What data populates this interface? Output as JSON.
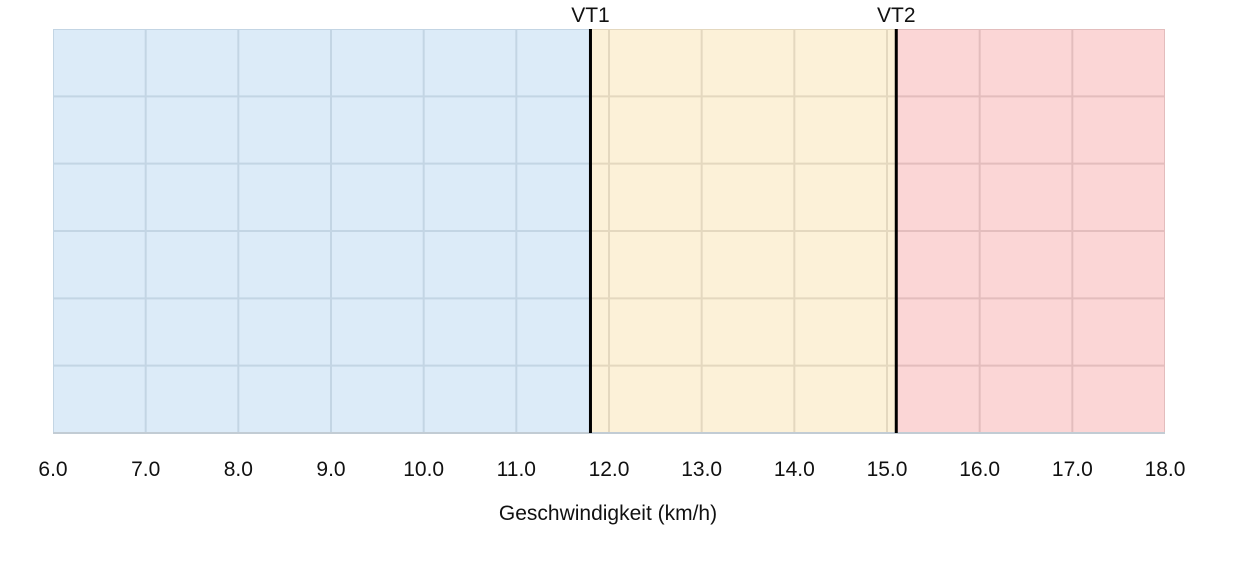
{
  "chart_data": {
    "type": "area",
    "title": "",
    "xlabel": "Geschwindigkeit (km/h)",
    "ylabel": "",
    "xlim": [
      6.0,
      18.0
    ],
    "x_ticks": [
      6.0,
      7.0,
      8.0,
      9.0,
      10.0,
      11.0,
      12.0,
      13.0,
      14.0,
      15.0,
      16.0,
      17.0,
      18.0
    ],
    "x_tick_labels": [
      "6.0",
      "7.0",
      "8.0",
      "9.0",
      "10.0",
      "11.0",
      "12.0",
      "13.0",
      "14.0",
      "15.0",
      "16.0",
      "17.0",
      "18.0"
    ],
    "y_gridlines": 6,
    "grid": true,
    "zones": [
      {
        "from": 6.0,
        "to": 11.8,
        "color": "#dcebf8",
        "grid_color": "#c3d5e4"
      },
      {
        "from": 11.8,
        "to": 15.1,
        "color": "#fcf1d8",
        "grid_color": "#e4d8bf"
      },
      {
        "from": 15.1,
        "to": 18.0,
        "color": "#fbd6d6",
        "grid_color": "#e3bdbd"
      }
    ],
    "markers": [
      {
        "label": "VT1",
        "x": 11.8
      },
      {
        "label": "VT2",
        "x": 15.1
      }
    ]
  }
}
